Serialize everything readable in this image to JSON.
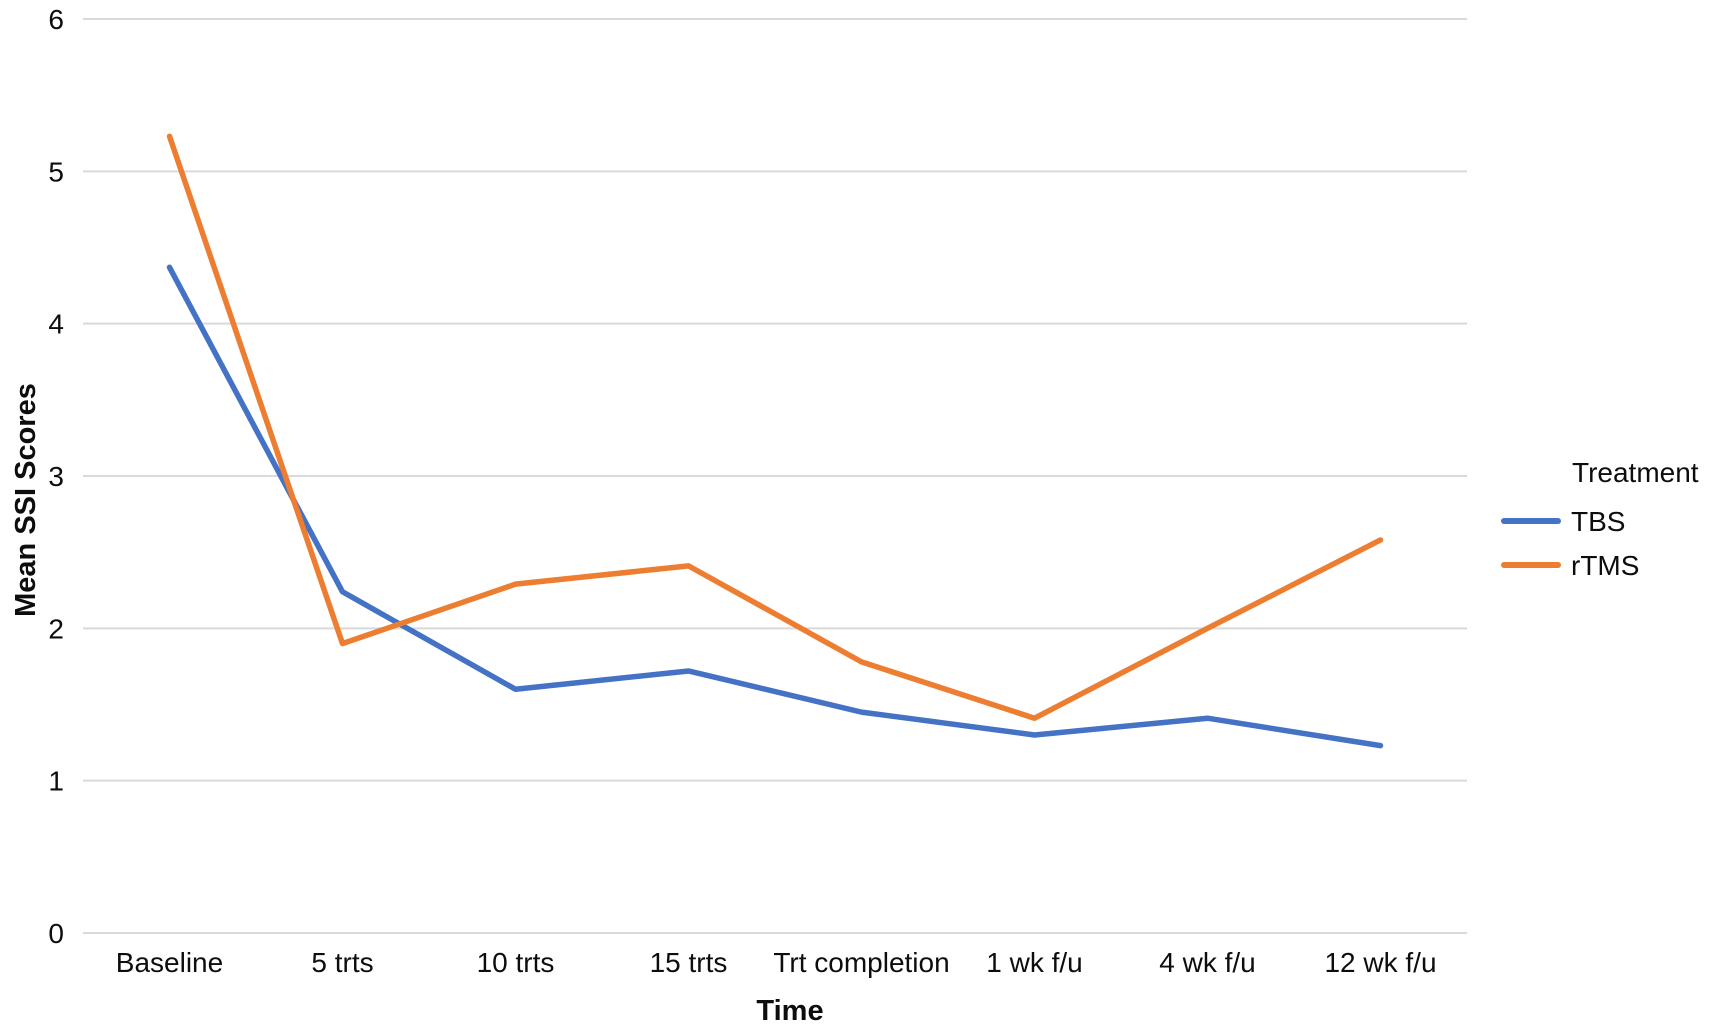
{
  "chart_data": {
    "type": "line",
    "title": "",
    "xlabel": "Time",
    "ylabel": "Mean SSI Scores",
    "categories": [
      "Baseline",
      "5 trts",
      "10 trts",
      "15 trts",
      "Trt completion",
      "1 wk f/u",
      "4 wk f/u",
      "12 wk f/u"
    ],
    "series": [
      {
        "name": "TBS",
        "color": "#4472C4",
        "values": [
          4.37,
          2.24,
          1.6,
          1.72,
          1.45,
          1.3,
          1.41,
          1.23
        ]
      },
      {
        "name": "rTMS",
        "color": "#ED7D31",
        "values": [
          5.23,
          1.9,
          2.29,
          2.41,
          1.78,
          1.41,
          2.0,
          2.58
        ]
      }
    ],
    "ylim": [
      0,
      6
    ],
    "yticks": [
      0,
      1,
      2,
      3,
      4,
      5,
      6
    ],
    "grid": "horizontal",
    "legend": {
      "title": "Treatment",
      "position": "right"
    },
    "gridline_color": "#D9D9D9",
    "text_color": "#0D0D0D",
    "background": "#FFFFFF"
  }
}
